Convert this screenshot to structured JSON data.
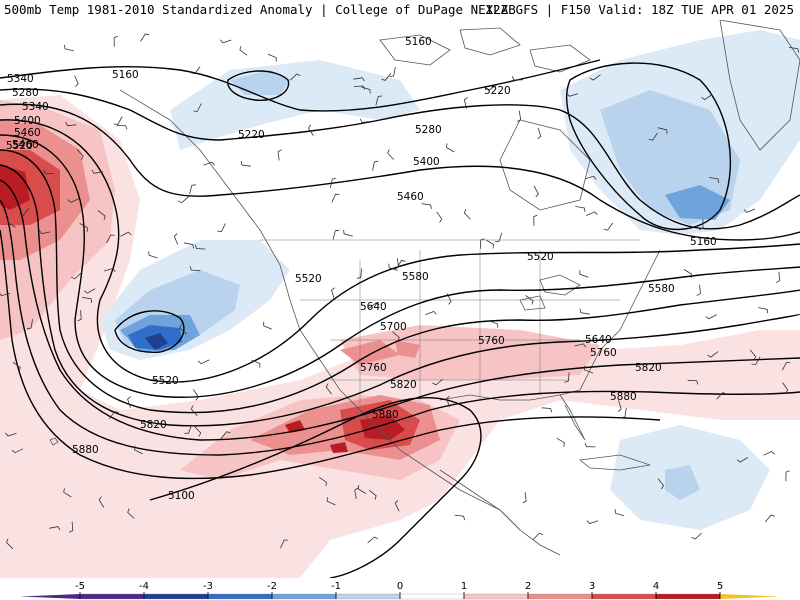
{
  "header": {
    "title_left": "500mb Temp 1981-2010 Standardized Anomaly | College of DuPage NEXLAB",
    "title_right": "12Z GFS | F150 Valid: 18Z TUE APR 01 2025"
  },
  "map": {
    "contour_labels": [
      {
        "id": "c5160-ak",
        "text": "5160"
      },
      {
        "id": "c5160-can",
        "text": "5160"
      },
      {
        "id": "c5160-east",
        "text": "5160"
      },
      {
        "id": "c5220-w1",
        "text": "5220"
      },
      {
        "id": "c5220-mid",
        "text": "5220"
      },
      {
        "id": "c5220-can",
        "text": "5220"
      },
      {
        "id": "c5280-w",
        "text": "5280"
      },
      {
        "id": "c5280-can",
        "text": "5280"
      },
      {
        "id": "c5340-w",
        "text": "5340"
      },
      {
        "id": "c5340-can",
        "text": "5340"
      },
      {
        "id": "c5400-w",
        "text": "5400"
      },
      {
        "id": "c5400-can",
        "text": "5400"
      },
      {
        "id": "c5460-w",
        "text": "5460"
      },
      {
        "id": "c5460-mid",
        "text": "5460"
      },
      {
        "id": "c5460-east",
        "text": "5460"
      },
      {
        "id": "c5520-w",
        "text": "5520"
      },
      {
        "id": "c5520-low",
        "text": "5520"
      },
      {
        "id": "c5520-mid",
        "text": "5520"
      },
      {
        "id": "c5520-east",
        "text": "5520"
      },
      {
        "id": "c5580-mid",
        "text": "5580"
      },
      {
        "id": "c5580-east",
        "text": "5580"
      },
      {
        "id": "c5640-mid",
        "text": "5640"
      },
      {
        "id": "c5640-east",
        "text": "5640"
      },
      {
        "id": "c5700",
        "text": "5700"
      },
      {
        "id": "c5760-mid",
        "text": "5760"
      },
      {
        "id": "c5760-pac",
        "text": "5760"
      },
      {
        "id": "c5760-east",
        "text": "5760"
      },
      {
        "id": "c5820-mid",
        "text": "5820"
      },
      {
        "id": "c5820-pac",
        "text": "5820"
      },
      {
        "id": "c5820-east",
        "text": "5820"
      },
      {
        "id": "c5880-tx",
        "text": "5880"
      },
      {
        "id": "c5880-pac",
        "text": "5880"
      },
      {
        "id": "c5880-south",
        "text": "5880"
      },
      {
        "id": "c5100",
        "text": "5100"
      }
    ],
    "colors": {
      "neg5": "#4b2a87",
      "neg4": "#1f3f8f",
      "neg3": "#2f6fc9",
      "neg2": "#6fa3dc",
      "neg1": "#b9d3ee",
      "neg05": "#dce9f7",
      "pos05": "#fbe2e2",
      "pos1": "#f6c4c4",
      "pos2": "#ec8f8f",
      "pos3": "#d94c4c",
      "pos4": "#b81c24",
      "pos5": "#7e0d18",
      "land_outline": "#555555",
      "contour": "#000000"
    }
  },
  "colorbar": {
    "ticks": [
      "-5",
      "-4",
      "-3",
      "-2",
      "-1",
      "0",
      "1",
      "2",
      "3",
      "4",
      "5"
    ],
    "colors": [
      "#4b2a87",
      "#1f3f8f",
      "#2f6fc9",
      "#6fa3dc",
      "#b9d3ee",
      "#ffffff",
      "#f6c4c4",
      "#ec8f8f",
      "#d94c4c",
      "#b81c24",
      "#7e0d18",
      "#f2c12e"
    ]
  }
}
